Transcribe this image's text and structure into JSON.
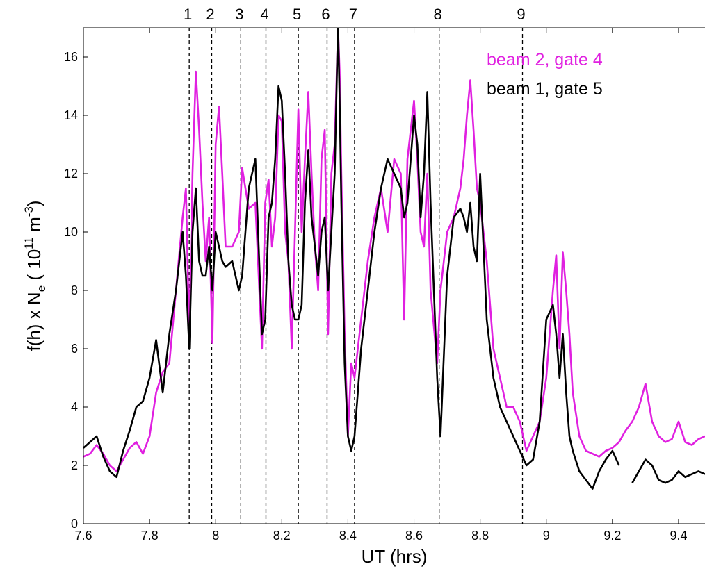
{
  "chart_data": {
    "type": "line",
    "xlabel": "UT (hrs)",
    "ylabel_parts": {
      "f": "f(h) x N",
      "sub": "e",
      "mid": " ( 10",
      "sup1": "11",
      "unit": " m",
      "sup2": "-3",
      "close": ")"
    },
    "xlim": [
      7.6,
      9.48
    ],
    "ylim": [
      0,
      17
    ],
    "xticks": [
      7.6,
      7.8,
      8.0,
      8.2,
      8.4,
      8.6,
      8.8,
      9.0,
      9.2,
      9.4
    ],
    "xtick_labels": [
      "7.6",
      "7.8",
      "8",
      "8.2",
      "8.4",
      "8.6",
      "8.8",
      "9",
      "9.2",
      "9.4"
    ],
    "yticks": [
      0,
      2,
      4,
      6,
      8,
      10,
      12,
      14,
      16
    ],
    "ytick_labels": [
      "0",
      "2",
      "4",
      "6",
      "8",
      "10",
      "12",
      "14",
      "16"
    ],
    "grid": false,
    "legend_placement": "top-right",
    "colors": {
      "beam2": "#e020e0",
      "beam1": "#000000",
      "markers": "#000000"
    },
    "markers": [
      {
        "label": "1",
        "x": 7.92
      },
      {
        "label": "2",
        "x": 7.988
      },
      {
        "label": "3",
        "x": 8.076
      },
      {
        "label": "4",
        "x": 8.152
      },
      {
        "label": "5",
        "x": 8.25
      },
      {
        "label": "6",
        "x": 8.337
      },
      {
        "label": "7",
        "x": 8.42
      },
      {
        "label": "8",
        "x": 8.676
      },
      {
        "label": "9",
        "x": 8.928
      }
    ],
    "series": [
      {
        "name": "beam 2, gate 4",
        "color": "#e020e0",
        "x": [
          7.6,
          7.62,
          7.64,
          7.66,
          7.68,
          7.7,
          7.72,
          7.74,
          7.76,
          7.78,
          7.8,
          7.82,
          7.84,
          7.86,
          7.88,
          7.9,
          7.91,
          7.92,
          7.93,
          7.94,
          7.95,
          7.96,
          7.97,
          7.98,
          7.99,
          8.0,
          8.01,
          8.02,
          8.03,
          8.05,
          8.07,
          8.08,
          8.09,
          8.1,
          8.12,
          8.14,
          8.15,
          8.16,
          8.17,
          8.18,
          8.19,
          8.2,
          8.21,
          8.22,
          8.23,
          8.24,
          8.25,
          8.26,
          8.27,
          8.28,
          8.29,
          8.3,
          8.31,
          8.32,
          8.33,
          8.34,
          8.35,
          8.36,
          8.37,
          8.375,
          8.38,
          8.39,
          8.4,
          8.41,
          8.42,
          8.44,
          8.46,
          8.48,
          8.5,
          8.52,
          8.54,
          8.56,
          8.57,
          8.58,
          8.6,
          8.61,
          8.62,
          8.63,
          8.64,
          8.65,
          8.67,
          8.68,
          8.7,
          8.72,
          8.74,
          8.75,
          8.76,
          8.77,
          8.78,
          8.79,
          8.8,
          8.82,
          8.84,
          8.86,
          8.88,
          8.9,
          8.92,
          8.94,
          8.96,
          8.98,
          9.0,
          9.02,
          9.03,
          9.04,
          9.05,
          9.06,
          9.07,
          9.08,
          9.1,
          9.12,
          9.14,
          9.16,
          9.18,
          9.2,
          9.22,
          9.24,
          9.26,
          9.28,
          9.3,
          9.32,
          9.34,
          9.36,
          9.38,
          9.4,
          9.42,
          9.44,
          9.46,
          9.48
        ],
        "y": [
          2.3,
          2.4,
          2.7,
          2.4,
          2.0,
          1.8,
          2.2,
          2.6,
          2.8,
          2.4,
          3.0,
          4.5,
          5.2,
          5.5,
          8.0,
          10.5,
          11.5,
          6.5,
          12.0,
          15.5,
          13.5,
          11.0,
          9.0,
          10.5,
          6.2,
          13.0,
          14.3,
          12.0,
          9.5,
          9.5,
          10.0,
          12.2,
          11.5,
          10.8,
          11.0,
          6.0,
          11.0,
          11.8,
          9.5,
          10.5,
          14.0,
          13.8,
          10.0,
          9.0,
          6.0,
          10.0,
          14.2,
          10.0,
          12.5,
          14.8,
          12.0,
          9.5,
          8.0,
          12.5,
          13.5,
          6.5,
          12.0,
          13.0,
          17.0,
          15.5,
          12.0,
          6.5,
          3.0,
          5.5,
          5.0,
          7.0,
          9.0,
          10.5,
          11.5,
          10.0,
          12.5,
          12.0,
          7.0,
          12.5,
          14.5,
          12.5,
          10.0,
          9.5,
          12.0,
          8.0,
          5.5,
          8.0,
          10.0,
          10.5,
          11.5,
          12.5,
          14.0,
          15.2,
          13.5,
          11.5,
          11.0,
          9.0,
          6.0,
          5.0,
          4.0,
          4.0,
          3.5,
          2.5,
          3.0,
          3.5,
          5.0,
          8.0,
          9.2,
          6.0,
          9.3,
          8.0,
          6.5,
          4.5,
          3.0,
          2.5,
          2.4,
          2.3,
          2.5,
          2.6,
          2.8,
          3.2,
          3.5,
          4.0,
          4.8,
          3.5,
          3.0,
          2.8,
          2.9,
          3.5,
          2.8,
          2.7,
          2.9,
          3.0
        ]
      },
      {
        "name": "beam 1, gate 5",
        "color": "#000000",
        "x": [
          7.6,
          7.62,
          7.64,
          7.66,
          7.68,
          7.7,
          7.72,
          7.74,
          7.76,
          7.78,
          7.8,
          7.82,
          7.84,
          7.86,
          7.88,
          7.9,
          7.91,
          7.92,
          7.93,
          7.94,
          7.95,
          7.96,
          7.97,
          7.98,
          7.99,
          8.0,
          8.01,
          8.02,
          8.03,
          8.05,
          8.07,
          8.08,
          8.09,
          8.1,
          8.12,
          8.14,
          8.15,
          8.16,
          8.17,
          8.18,
          8.19,
          8.2,
          8.21,
          8.22,
          8.23,
          8.24,
          8.25,
          8.26,
          8.27,
          8.28,
          8.29,
          8.3,
          8.31,
          8.32,
          8.33,
          8.34,
          8.35,
          8.36,
          8.37,
          8.375,
          8.38,
          8.39,
          8.4,
          8.41,
          8.42,
          8.44,
          8.46,
          8.48,
          8.5,
          8.52,
          8.54,
          8.56,
          8.57,
          8.58,
          8.6,
          8.61,
          8.62,
          8.63,
          8.64,
          8.65,
          8.67,
          8.68,
          8.7,
          8.72,
          8.74,
          8.75,
          8.76,
          8.77,
          8.78,
          8.79,
          8.8,
          8.82,
          8.84,
          8.86,
          8.88,
          8.9,
          8.92,
          8.94,
          8.96,
          8.98,
          9.0,
          9.02,
          9.03,
          9.04,
          9.05,
          9.06,
          9.07,
          9.08,
          9.1,
          9.12,
          9.14,
          9.16,
          9.18,
          9.2,
          9.22,
          9.24,
          9.26,
          9.28,
          9.3,
          9.32,
          9.34,
          9.36,
          9.38,
          9.4,
          9.42,
          9.44,
          9.46,
          9.48
        ],
        "y": [
          2.6,
          2.8,
          3.0,
          2.3,
          1.8,
          1.6,
          2.5,
          3.2,
          4.0,
          4.2,
          5.0,
          6.3,
          4.5,
          6.5,
          8.0,
          10.0,
          8.5,
          6.0,
          10.0,
          11.5,
          9.0,
          8.5,
          8.5,
          9.5,
          8.0,
          10.0,
          9.5,
          9.0,
          8.8,
          9.0,
          8.0,
          8.5,
          10.0,
          11.5,
          12.5,
          6.5,
          7.0,
          10.5,
          11.0,
          12.5,
          15.0,
          14.5,
          12.0,
          9.0,
          7.5,
          7.0,
          7.0,
          7.5,
          11.0,
          12.8,
          10.5,
          9.5,
          8.5,
          10.0,
          10.5,
          8.0,
          10.0,
          12.0,
          17.2,
          14.5,
          11.0,
          5.5,
          3.0,
          2.5,
          3.0,
          6.0,
          8.0,
          10.0,
          11.5,
          12.5,
          12.0,
          11.5,
          10.5,
          11.0,
          14.0,
          13.0,
          10.5,
          12.0,
          14.8,
          11.0,
          5.0,
          3.0,
          8.5,
          10.5,
          10.8,
          10.5,
          10.0,
          11.0,
          9.5,
          9.0,
          12.0,
          7.0,
          5.0,
          4.0,
          3.5,
          3.0,
          2.5,
          2.0,
          2.2,
          3.5,
          7.0,
          7.5,
          6.5,
          5.0,
          6.5,
          4.5,
          3.0,
          2.5,
          1.8,
          1.5,
          1.2,
          1.8,
          2.2,
          2.5,
          2.0,
          null,
          1.4,
          1.8,
          2.2,
          2.0,
          1.5,
          1.4,
          1.5,
          1.8,
          1.6,
          1.7,
          1.8,
          1.7
        ]
      }
    ]
  }
}
